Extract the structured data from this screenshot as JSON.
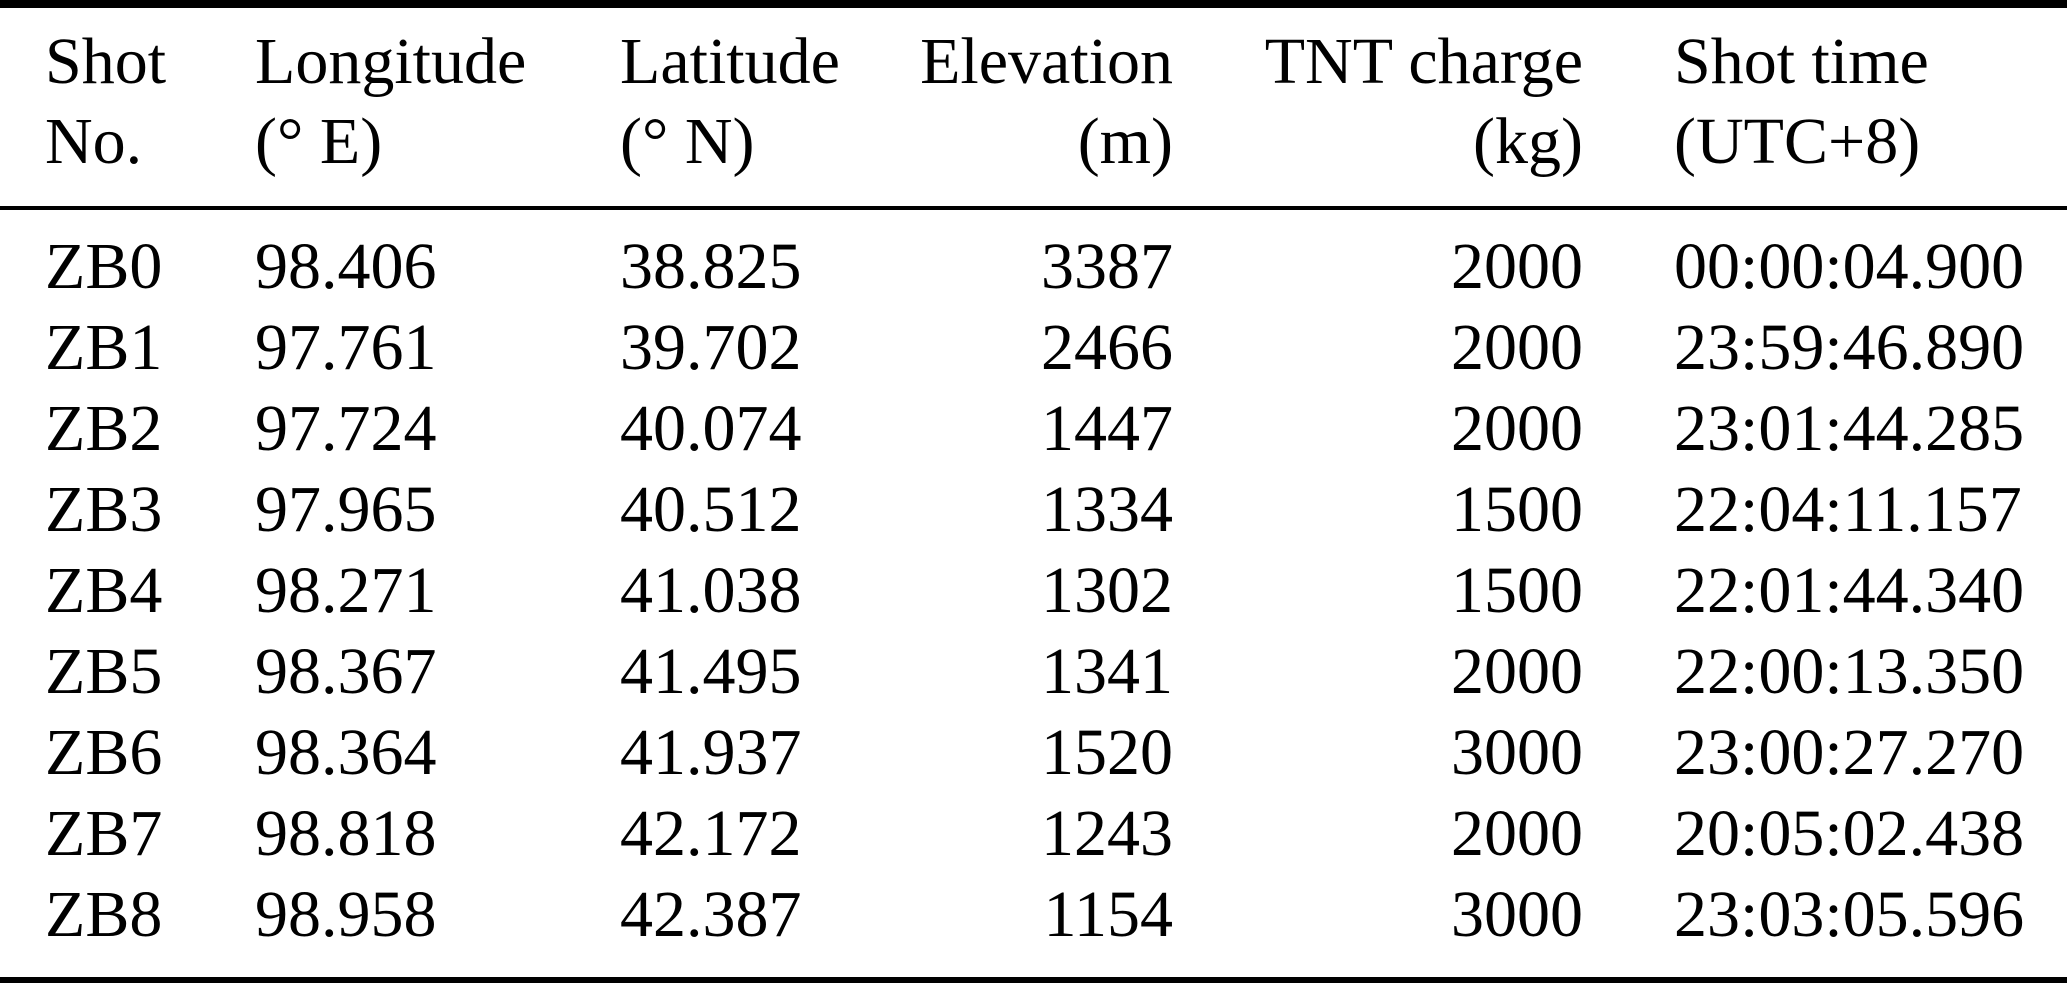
{
  "table": {
    "columns": [
      {
        "id": "shot-no",
        "label": "Shot",
        "unit": "No.",
        "align": "left"
      },
      {
        "id": "longitude",
        "label": "Longitude",
        "unit": "(° E)",
        "align": "left"
      },
      {
        "id": "latitude",
        "label": "Latitude",
        "unit": "(° N)",
        "align": "left"
      },
      {
        "id": "elevation",
        "label": "Elevation",
        "unit": "(m)",
        "align": "right"
      },
      {
        "id": "tnt-charge",
        "label": "TNT charge",
        "unit": "(kg)",
        "align": "right"
      },
      {
        "id": "shot-time",
        "label": "Shot time",
        "unit": "(UTC+8)",
        "align": "left"
      }
    ],
    "rows": [
      [
        "ZB0",
        "98.406",
        "38.825",
        "3387",
        "2000",
        "00:00:04.900"
      ],
      [
        "ZB1",
        "97.761",
        "39.702",
        "2466",
        "2000",
        "23:59:46.890"
      ],
      [
        "ZB2",
        "97.724",
        "40.074",
        "1447",
        "2000",
        "23:01:44.285"
      ],
      [
        "ZB3",
        "97.965",
        "40.512",
        "1334",
        "1500",
        "22:04:11.157"
      ],
      [
        "ZB4",
        "98.271",
        "41.038",
        "1302",
        "1500",
        "22:01:44.340"
      ],
      [
        "ZB5",
        "98.367",
        "41.495",
        "1341",
        "2000",
        "22:00:13.350"
      ],
      [
        "ZB6",
        "98.364",
        "41.937",
        "1520",
        "3000",
        "23:00:27.270"
      ],
      [
        "ZB7",
        "98.818",
        "42.172",
        "1243",
        "2000",
        "20:05:02.438"
      ],
      [
        "ZB8",
        "98.958",
        "42.387",
        "1154",
        "3000",
        "23:03:05.596"
      ]
    ]
  },
  "colors": {
    "text": "#000000",
    "background": "#ffffff",
    "rule": "#000000"
  }
}
